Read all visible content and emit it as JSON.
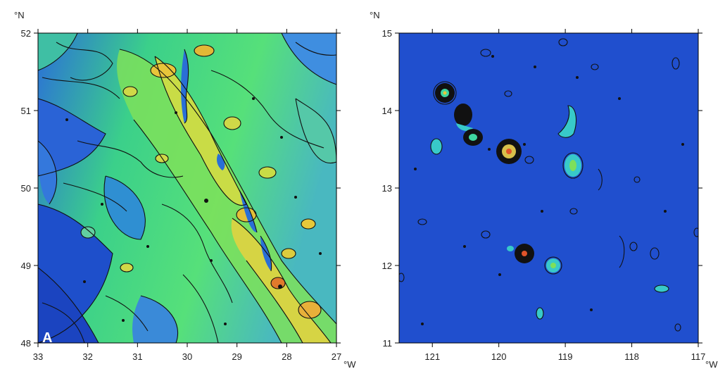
{
  "panels": [
    {
      "id": "left",
      "panel_letter": "A",
      "lat_unit": "°N",
      "lon_unit": "°W",
      "x_ticks": [
        "33",
        "32",
        "31",
        "30",
        "29",
        "28",
        "27"
      ],
      "y_ticks": [
        "52",
        "51",
        "50",
        "49",
        "48"
      ],
      "x_range": [
        33,
        27
      ],
      "y_range": [
        48,
        52
      ],
      "colors": {
        "low": "#1b4fcf",
        "mid": "#3fe07a",
        "high": "#e7d43a",
        "peak": "#e0542a"
      }
    },
    {
      "id": "right",
      "panel_letter": "",
      "lat_unit": "°N",
      "lon_unit": "°W",
      "x_ticks": [
        "121",
        "120",
        "119",
        "118",
        "117"
      ],
      "y_ticks": [
        "15",
        "14",
        "13",
        "12",
        "11"
      ],
      "x_range": [
        121.5,
        117
      ],
      "y_range": [
        11,
        15
      ],
      "colors": {
        "background": "#1f4fd0",
        "feature": "#38c9c9",
        "peak": "#e0542a"
      }
    }
  ]
}
